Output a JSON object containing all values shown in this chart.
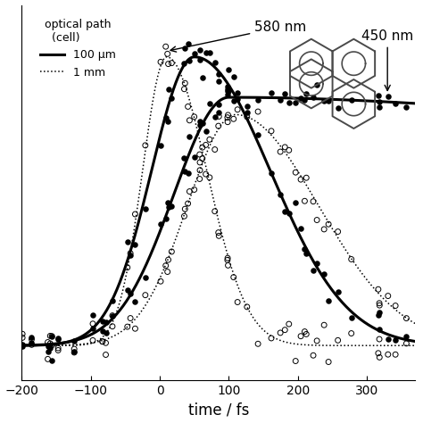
{
  "title": "",
  "xlabel": "time / fs",
  "ylabel": "",
  "xlim": [
    -200,
    370
  ],
  "ylim": [
    -0.12,
    1.18
  ],
  "background_color": "#ffffff",
  "legend_title": "optical path\n  (cell)",
  "legend_labels": [
    "100 μm",
    "1 mm"
  ],
  "annotation_580": "580 nm",
  "annotation_450": "450 nm",
  "solid_line_lw": 2.2,
  "dotted_line_lw": 1.1,
  "marker_size_filled": 22,
  "marker_size_open": 18
}
